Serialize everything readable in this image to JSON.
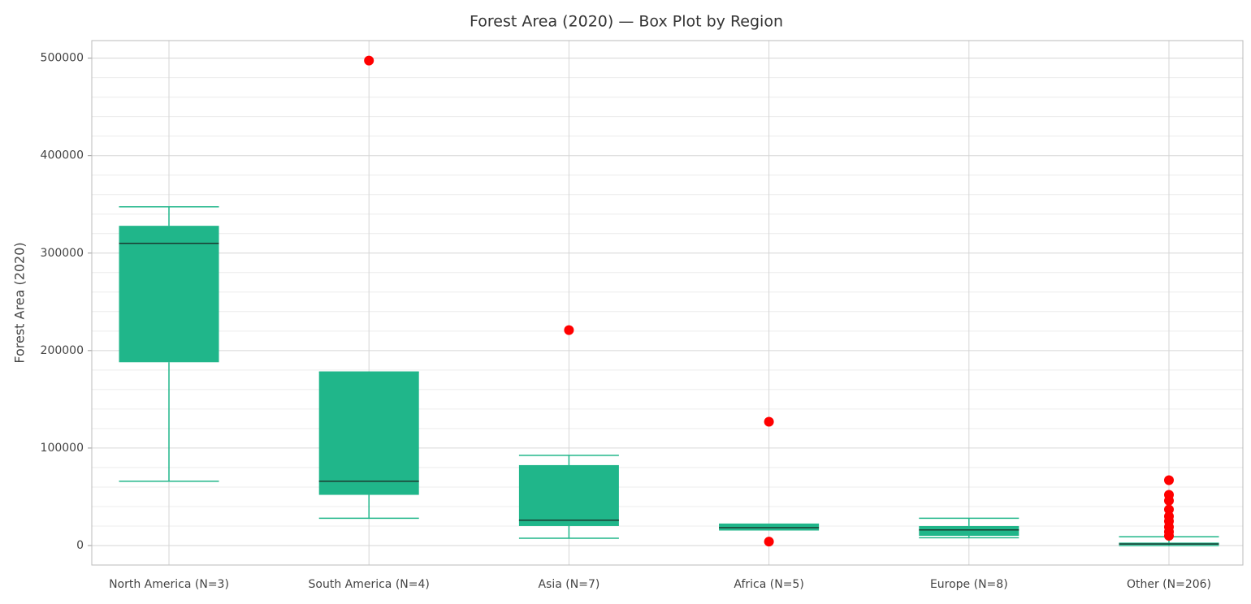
{
  "chart_data": {
    "type": "box",
    "title": "Forest Area (2020) — Box Plot by Region",
    "y_label": "Forest Area (2020)",
    "categories": [
      "North America (N=3)",
      "South America (N=4)",
      "Asia (N=7)",
      "Africa (N=5)",
      "Europe (N=8)",
      "Other (N=206)"
    ],
    "boxes": [
      {
        "lower": 66000,
        "q1": 188000,
        "median": 310000,
        "q3": 328000,
        "upper": 347500,
        "outliers": []
      },
      {
        "lower": 28000,
        "q1": 52000,
        "median": 66000,
        "q3": 178000,
        "upper": 178000,
        "outliers": [
          497500
        ]
      },
      {
        "lower": 7500,
        "q1": 20000,
        "median": 26000,
        "q3": 82500,
        "upper": 92500,
        "outliers": [
          221000
        ]
      },
      {
        "lower": 16000,
        "q1": 16700,
        "median": 18300,
        "q3": 22000,
        "upper": 22000,
        "outliers": [
          127000,
          4000
        ]
      },
      {
        "lower": 8000,
        "q1": 10000,
        "median": 16000,
        "q3": 20000,
        "upper": 28000,
        "outliers": []
      },
      {
        "lower": 0,
        "q1": 800,
        "median": 1500,
        "q3": 3000,
        "upper": 9000,
        "outliers": [
          67000,
          52000,
          46000,
          37000,
          30000,
          25000,
          19000,
          14000,
          10000
        ]
      }
    ],
    "color": "#20b68a",
    "median_color": "#1a3a30",
    "outlier_color": "#ff0000",
    "ylim": [
      -20000,
      518000
    ],
    "yticks": [
      0,
      100000,
      200000,
      300000,
      400000,
      500000
    ],
    "yminor": [
      20000,
      40000,
      60000,
      80000,
      120000,
      140000,
      160000,
      180000,
      220000,
      240000,
      260000,
      280000,
      320000,
      340000,
      360000,
      380000,
      420000,
      440000,
      460000,
      480000
    ],
    "grid": true
  }
}
